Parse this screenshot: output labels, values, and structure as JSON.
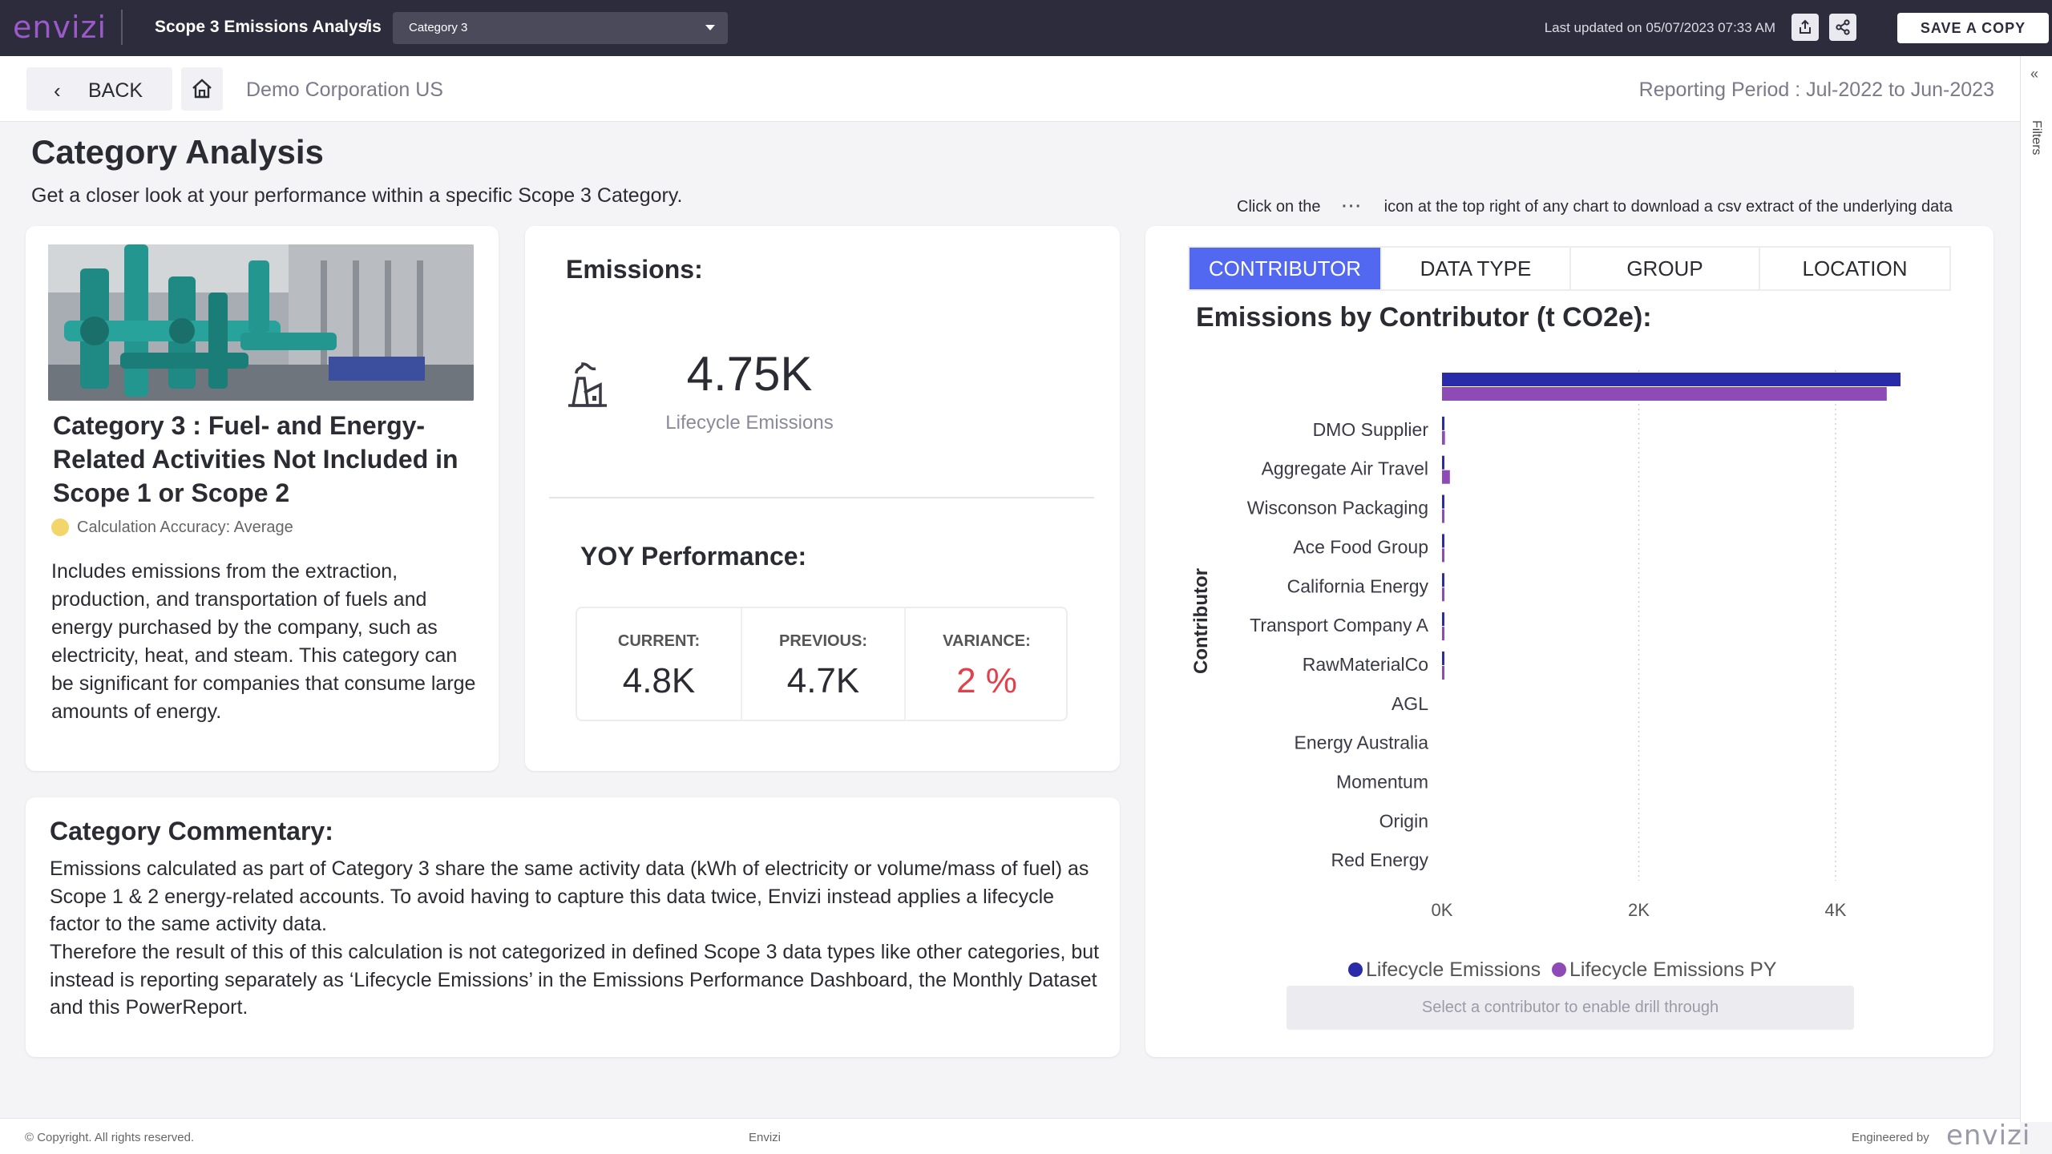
{
  "topbar": {
    "logo": "envizi",
    "app_title": "Scope 3 Emissions Analysis",
    "separator": "/",
    "category_select": "Category 3",
    "last_updated": "Last updated on 05/07/2023 07:33 AM",
    "save_copy": "SAVE A COPY"
  },
  "nav": {
    "back": "BACK",
    "organization": "Demo Corporation US",
    "reporting_period": "Reporting Period : Jul-2022 to Jun-2023"
  },
  "filters_pane": {
    "label": "Filters"
  },
  "header": {
    "title": "Category Analysis",
    "subtitle": "Get a closer look at your performance within a specific Scope 3 Category.",
    "hint_before": "Click on the",
    "hint_dots": "···",
    "hint_after": "icon at the top right of any chart to download a csv extract of the underlying data"
  },
  "category_card": {
    "title": "Category 3 : Fuel- and Energy-Related Activities Not Included in Scope 1 or Scope 2",
    "accuracy": "Calculation Accuracy: Average",
    "accuracy_color": "#f2d56b",
    "description": "Includes emissions from the extraction, production, and transportation of fuels and energy purchased by the company, such as electricity, heat, and steam. This category can be significant for companies that consume large amounts of energy."
  },
  "emissions_card": {
    "label": "Emissions:",
    "value": "4.75K",
    "value_label": "Lifecycle Emissions",
    "yoy_label": "YOY Performance:",
    "current_label": "CURRENT:",
    "current_value": "4.8K",
    "previous_label": "PREVIOUS:",
    "previous_value": "4.7K",
    "variance_label": "VARIANCE:",
    "variance_value": "2 %",
    "variance_color": "#e0414b"
  },
  "commentary": {
    "title": "Category Commentary:",
    "paragraph1": "Emissions calculated as part of Category 3 share the same activity data (kWh of electricity or volume/mass of fuel) as Scope 1 & 2 energy-related accounts. To avoid having to capture this data twice, Envizi instead applies a lifecycle factor to the same activity data.",
    "paragraph2": "Therefore the result of this of this calculation is not categorized in defined Scope 3 data types like other categories, but instead is reporting separately as ‘Lifecycle Emissions’ in the Emissions Performance Dashboard, the Monthly Dataset and this PowerReport."
  },
  "chart_panel": {
    "tabs": [
      "CONTRIBUTOR",
      "DATA TYPE",
      "GROUP",
      "LOCATION"
    ],
    "active_tab": "CONTRIBUTOR",
    "drill_hint": "Select a contributor to enable drill through"
  },
  "chart_data": {
    "type": "bar",
    "orientation": "horizontal",
    "title": "Emissions by Contributor (t CO2e):",
    "ylabel": "Contributor",
    "xlabel": "",
    "categories": [
      "",
      "DMO Supplier",
      "Aggregate Air Travel",
      "Wisconson Packaging",
      "Ace Food Group",
      "California Energy",
      "Transport Company A",
      "RawMaterialCo",
      "AGL",
      "Energy Australia",
      "Momentum",
      "Origin",
      "Red Energy"
    ],
    "series": [
      {
        "name": "Lifecycle Emissions",
        "color": "#2a2ba8",
        "values": [
          4660,
          25,
          20,
          10,
          8,
          6,
          5,
          4,
          0,
          0,
          0,
          0,
          0
        ]
      },
      {
        "name": "Lifecycle Emissions PY",
        "color": "#8e4ab5",
        "values": [
          4520,
          30,
          80,
          12,
          10,
          8,
          6,
          5,
          0,
          0,
          0,
          0,
          0
        ]
      }
    ],
    "xlim": [
      0,
      4600
    ],
    "xticks": [
      "0K",
      "2K",
      "4K"
    ],
    "grid": true,
    "legend": "bottom"
  }
}
